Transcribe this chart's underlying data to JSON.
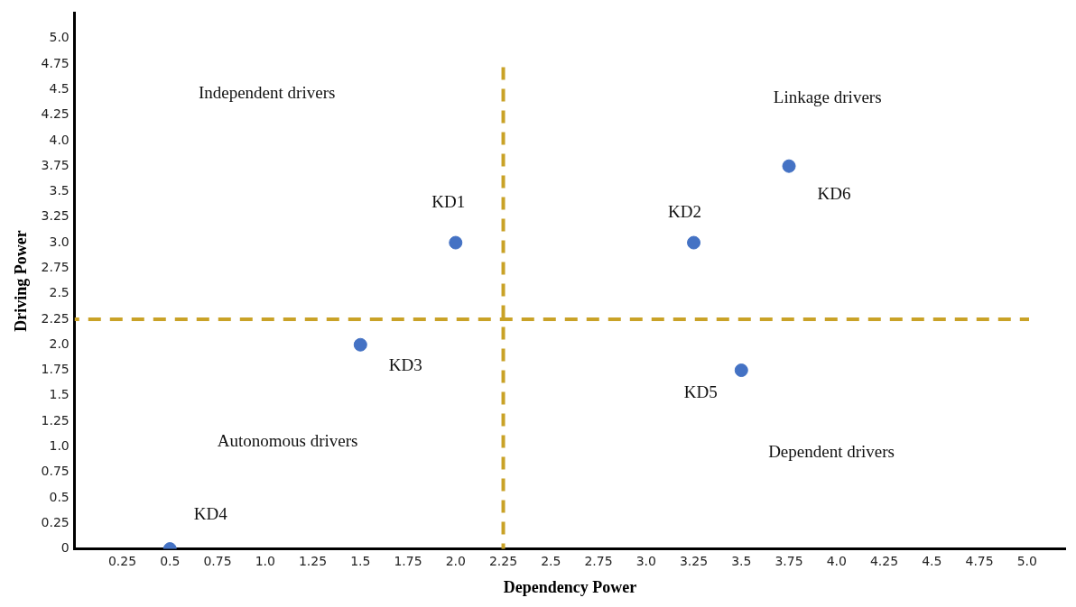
{
  "chart_data": {
    "type": "scatter",
    "xlabel": "Dependency Power",
    "ylabel": "Driving Power",
    "marker": "circle",
    "grid": false,
    "xlim": [
      0,
      5.2
    ],
    "ylim": [
      0,
      5.25
    ],
    "xticks": [
      0.25,
      0.5,
      0.75,
      {
        "value": 1,
        "label": "1.0"
      },
      1.25,
      1.5,
      1.75,
      {
        "value": 2,
        "label": "2.0"
      },
      2.25,
      2.5,
      2.75,
      {
        "value": 3,
        "label": "3.0"
      },
      3.25,
      3.5,
      3.75,
      {
        "value": 4,
        "label": "4.0"
      },
      4.25,
      4.5,
      4.75,
      {
        "value": 5,
        "label": "5.0"
      }
    ],
    "yticks": [
      0,
      0.25,
      0.5,
      0.75,
      {
        "value": 1,
        "label": "1.0"
      },
      1.25,
      1.5,
      1.75,
      {
        "value": 2,
        "label": "2.0"
      },
      2.25,
      2.5,
      2.75,
      {
        "value": 3,
        "label": "3.0"
      },
      3.25,
      3.5,
      3.75,
      {
        "value": 4,
        "label": "4.0"
      },
      4.25,
      4.5,
      4.75,
      {
        "value": 5,
        "label": "5.0"
      }
    ],
    "series": [
      {
        "name": "KD1",
        "color": "#4472c4",
        "x": [
          2.0
        ],
        "values": [
          3.0
        ]
      },
      {
        "name": "KD2",
        "color": "#4472c4",
        "x": [
          3.25
        ],
        "values": [
          3.0
        ]
      },
      {
        "name": "KD3",
        "color": "#4472c4",
        "x": [
          1.5
        ],
        "values": [
          2.0
        ]
      },
      {
        "name": "KD4",
        "color": "#4472c4",
        "x": [
          0.5
        ],
        "values": [
          0
        ]
      },
      {
        "name": "KD5",
        "color": "#4472c4",
        "x": [
          3.5
        ],
        "values": [
          1.75
        ]
      },
      {
        "name": "KD6",
        "color": "#4472c4",
        "x": [
          3.75
        ],
        "values": [
          3.75
        ]
      }
    ],
    "ref_lines": [
      {
        "axis": "x",
        "value": 2.25,
        "color": "#c9a227",
        "line_style": "dashed"
      },
      {
        "axis": "y",
        "value": 2.25,
        "color": "#c9a227",
        "line_style": "dashed"
      }
    ],
    "annotations": [
      "Independent drivers",
      "Linkage drivers",
      "Autonomous drivers",
      "Dependent drivers"
    ]
  }
}
